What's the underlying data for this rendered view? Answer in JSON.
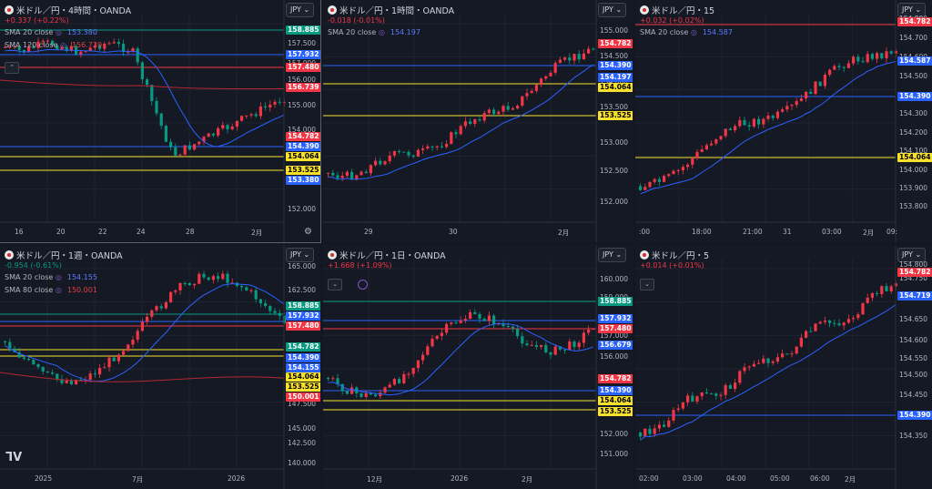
{
  "colors": {
    "up": "#f23645",
    "down": "#089981",
    "sma20": "#2962ff",
    "sma_long": "#b22833",
    "bg": "#151924"
  },
  "panels": [
    {
      "symbol": "米ドル／円・4時間・OANDA",
      "change": "+0.337 (+0.22%)",
      "change_color": "#f23645",
      "currency": "JPY",
      "indicators": [
        {
          "label": "SMA 20 close",
          "value": "153.380",
          "color": "#5b7cff"
        },
        {
          "label": "SMA 120 close",
          "value": "156.739",
          "color": "#e04040"
        }
      ],
      "price_ticks": [
        "157.500",
        "157.000",
        "156.000",
        "155.000",
        "154.000",
        "153.000",
        "152.000"
      ],
      "time_ticks": [
        "16",
        "20",
        "22",
        "24",
        "28",
        "2月"
      ],
      "tags": [
        {
          "text": "158.885",
          "bg": "#089981",
          "fg": "#ffffff"
        },
        {
          "text": "157.932",
          "bg": "#2962ff",
          "fg": "#ffffff"
        },
        {
          "text": "157.480",
          "bg": "#f23645",
          "fg": "#ffffff"
        },
        {
          "text": "156.739",
          "bg": "#f23645",
          "fg": "#ffffff"
        },
        {
          "text": "154.782",
          "bg": "#f23645",
          "fg": "#ffffff"
        },
        {
          "text": "154.390",
          "bg": "#2962ff",
          "fg": "#ffffff"
        },
        {
          "text": "154.064",
          "bg": "#f7e12c",
          "fg": "#000000"
        },
        {
          "text": "153.525",
          "bg": "#f7e12c",
          "fg": "#000000"
        },
        {
          "text": "153.380",
          "bg": "#2962ff",
          "fg": "#ffffff"
        }
      ]
    },
    {
      "symbol": "米ドル／円・1時間・OANDA",
      "change": "-0.018 (-0.01%)",
      "change_color": "#f23645",
      "currency": "JPY",
      "indicators": [
        {
          "label": "SMA 20 close",
          "value": "154.197",
          "color": "#5b7cff"
        }
      ],
      "price_ticks": [
        "155.000",
        "154.500",
        "154.000",
        "153.500",
        "153.000",
        "152.500",
        "152.000"
      ],
      "time_ticks": [
        "29",
        "30",
        "2月"
      ],
      "tags": [
        {
          "text": "154.782",
          "bg": "#f23645",
          "fg": "#ffffff"
        },
        {
          "text": "154.390",
          "bg": "#2962ff",
          "fg": "#ffffff"
        },
        {
          "text": "154.197",
          "bg": "#2962ff",
          "fg": "#ffffff"
        },
        {
          "text": "154.064",
          "bg": "#f7e12c",
          "fg": "#000000"
        },
        {
          "text": "153.525",
          "bg": "#f7e12c",
          "fg": "#000000"
        }
      ]
    },
    {
      "symbol": "米ドル／円・15",
      "change": "+0.032 (+0.02%)",
      "change_color": "#f23645",
      "currency": "JPY",
      "indicators": [
        {
          "label": "SMA 20 close",
          "value": "154.587",
          "color": "#5b7cff"
        }
      ],
      "price_ticks": [
        "154.800",
        "154.700",
        "154.600",
        "154.500",
        "154.400",
        "154.300",
        "154.200",
        "154.100",
        "154.000",
        "153.900",
        "153.800"
      ],
      "time_ticks": [
        ":00",
        "18:00",
        "21:00",
        "31",
        "03:00",
        "2月",
        "09:"
      ],
      "tags": [
        {
          "text": "154.782",
          "bg": "#f23645",
          "fg": "#ffffff"
        },
        {
          "text": "154.587",
          "bg": "#2962ff",
          "fg": "#ffffff"
        },
        {
          "text": "154.390",
          "bg": "#2962ff",
          "fg": "#ffffff"
        },
        {
          "text": "154.064",
          "bg": "#f7e12c",
          "fg": "#000000"
        }
      ]
    },
    {
      "symbol": "米ドル／円・1週・OANDA",
      "change": "-0.954 (-0.61%)",
      "change_color": "#089981",
      "currency": "JPY",
      "indicators": [
        {
          "label": "SMA 20 close",
          "value": "154.155",
          "color": "#5b7cff"
        },
        {
          "label": "SMA 80 close",
          "value": "150.001",
          "color": "#e04040"
        }
      ],
      "price_ticks": [
        "165.000",
        "162.500",
        "160.000",
        "147.500",
        "145.000",
        "142.500",
        "140.000"
      ],
      "time_ticks": [
        "2025",
        "7月",
        "2026"
      ],
      "tags": [
        {
          "text": "158.885",
          "bg": "#089981",
          "fg": "#ffffff"
        },
        {
          "text": "157.932",
          "bg": "#2962ff",
          "fg": "#ffffff"
        },
        {
          "text": "157.480",
          "bg": "#f23645",
          "fg": "#ffffff"
        },
        {
          "text": "154.782",
          "bg": "#089981",
          "fg": "#ffffff"
        },
        {
          "text": "154.390",
          "bg": "#2962ff",
          "fg": "#ffffff"
        },
        {
          "text": "154.155",
          "bg": "#2962ff",
          "fg": "#ffffff"
        },
        {
          "text": "154.064",
          "bg": "#f7e12c",
          "fg": "#000000"
        },
        {
          "text": "153.525",
          "bg": "#f7e12c",
          "fg": "#000000"
        },
        {
          "text": "150.001",
          "bg": "#f23645",
          "fg": "#ffffff"
        }
      ]
    },
    {
      "symbol": "米ドル／円・1日・OANDA",
      "change": "+1.668 (+1.09%)",
      "change_color": "#f23645",
      "currency": "JPY",
      "indicators": [],
      "price_ticks": [
        "160.000",
        "159.000",
        "157.000",
        "156.000",
        "152.000",
        "151.000"
      ],
      "time_ticks": [
        "12月",
        "2026",
        "2月"
      ],
      "tags": [
        {
          "text": "158.885",
          "bg": "#089981",
          "fg": "#ffffff"
        },
        {
          "text": "157.932",
          "bg": "#2962ff",
          "fg": "#ffffff"
        },
        {
          "text": "157.480",
          "bg": "#f23645",
          "fg": "#ffffff"
        },
        {
          "text": "156.679",
          "bg": "#2962ff",
          "fg": "#ffffff"
        },
        {
          "text": "154.782",
          "bg": "#f23645",
          "fg": "#ffffff"
        },
        {
          "text": "154.390",
          "bg": "#2962ff",
          "fg": "#ffffff"
        },
        {
          "text": "154.064",
          "bg": "#f7e12c",
          "fg": "#000000"
        },
        {
          "text": "153.525",
          "bg": "#f7e12c",
          "fg": "#000000"
        }
      ]
    },
    {
      "symbol": "米ドル／円・5",
      "change": "+0.014 (+0.01%)",
      "change_color": "#f23645",
      "currency": "JPY",
      "indicators": [],
      "price_ticks": [
        "154.800",
        "154.750",
        "154.700",
        "154.650",
        "154.600",
        "154.550",
        "154.500",
        "154.450",
        "154.400",
        "154.350"
      ],
      "time_ticks": [
        "02:00",
        "03:00",
        "04:00",
        "05:00",
        "06:00",
        "2月"
      ],
      "tags": [
        {
          "text": "154.782",
          "bg": "#f23645",
          "fg": "#ffffff"
        },
        {
          "text": "154.719",
          "bg": "#2962ff",
          "fg": "#ffffff"
        },
        {
          "text": "154.390",
          "bg": "#2962ff",
          "fg": "#ffffff"
        }
      ]
    }
  ]
}
